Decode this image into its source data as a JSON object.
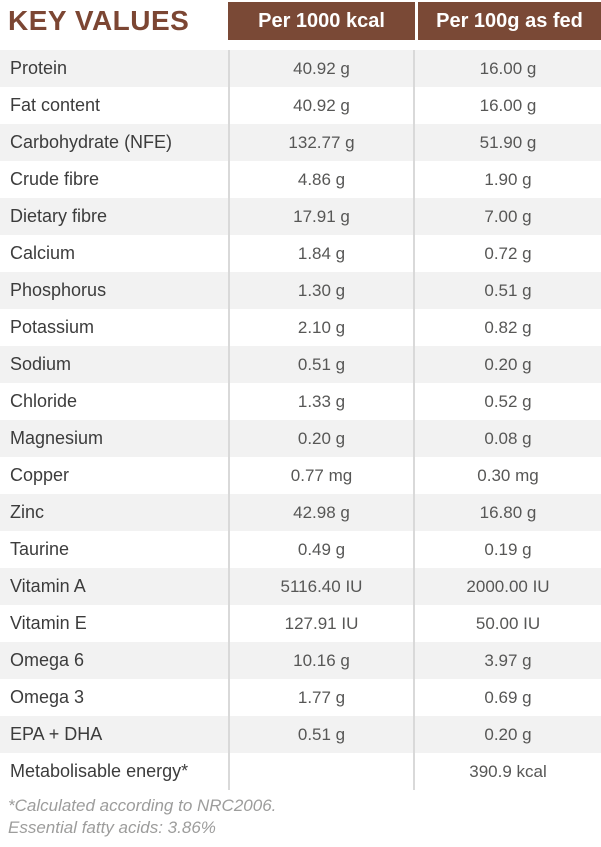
{
  "title": "KEY VALUES",
  "columns": [
    "Per 1000 kcal",
    "Per 100g as fed"
  ],
  "rows": [
    {
      "label": "Protein",
      "per1000": "40.92 g",
      "per100g": "16.00 g"
    },
    {
      "label": "Fat content",
      "per1000": "40.92 g",
      "per100g": "16.00 g"
    },
    {
      "label": "Carbohydrate (NFE)",
      "per1000": "132.77 g",
      "per100g": "51.90 g"
    },
    {
      "label": "Crude fibre",
      "per1000": "4.86 g",
      "per100g": "1.90 g"
    },
    {
      "label": "Dietary fibre",
      "per1000": "17.91 g",
      "per100g": "7.00 g"
    },
    {
      "label": "Calcium",
      "per1000": "1.84 g",
      "per100g": "0.72 g"
    },
    {
      "label": "Phosphorus",
      "per1000": "1.30 g",
      "per100g": "0.51 g"
    },
    {
      "label": "Potassium",
      "per1000": "2.10 g",
      "per100g": "0.82 g"
    },
    {
      "label": "Sodium",
      "per1000": "0.51 g",
      "per100g": "0.20 g"
    },
    {
      "label": "Chloride",
      "per1000": "1.33 g",
      "per100g": "0.52 g"
    },
    {
      "label": "Magnesium",
      "per1000": "0.20 g",
      "per100g": "0.08 g"
    },
    {
      "label": "Copper",
      "per1000": "0.77 mg",
      "per100g": "0.30 mg"
    },
    {
      "label": "Zinc",
      "per1000": "42.98 g",
      "per100g": "16.80 g"
    },
    {
      "label": "Taurine",
      "per1000": "0.49 g",
      "per100g": "0.19 g"
    },
    {
      "label": "Vitamin A",
      "per1000": "5116.40 IU",
      "per100g": "2000.00 IU"
    },
    {
      "label": "Vitamin E",
      "per1000": "127.91 IU",
      "per100g": "50.00 IU"
    },
    {
      "label": "Omega 6",
      "per1000": "10.16 g",
      "per100g": "3.97 g"
    },
    {
      "label": "Omega 3",
      "per1000": "1.77 g",
      "per100g": "0.69 g"
    },
    {
      "label": "EPA + DHA",
      "per1000": "0.51 g",
      "per100g": "0.20 g"
    },
    {
      "label": "Metabolisable energy*",
      "per1000": "",
      "per100g": "390.9 kcal"
    }
  ],
  "footnote": {
    "line1": "*Calculated according to NRC2006.",
    "line2": "Essential fatty acids: 3.86%"
  },
  "colors": {
    "brand_brown": "#7a4936",
    "title_brown": "#7c4633",
    "row_alt_gray": "#f2f2f2",
    "divider_gray": "#d9d9d9",
    "label_text": "#3c3c3c",
    "value_text": "#575756",
    "footnote_text": "#9d9d9c"
  }
}
